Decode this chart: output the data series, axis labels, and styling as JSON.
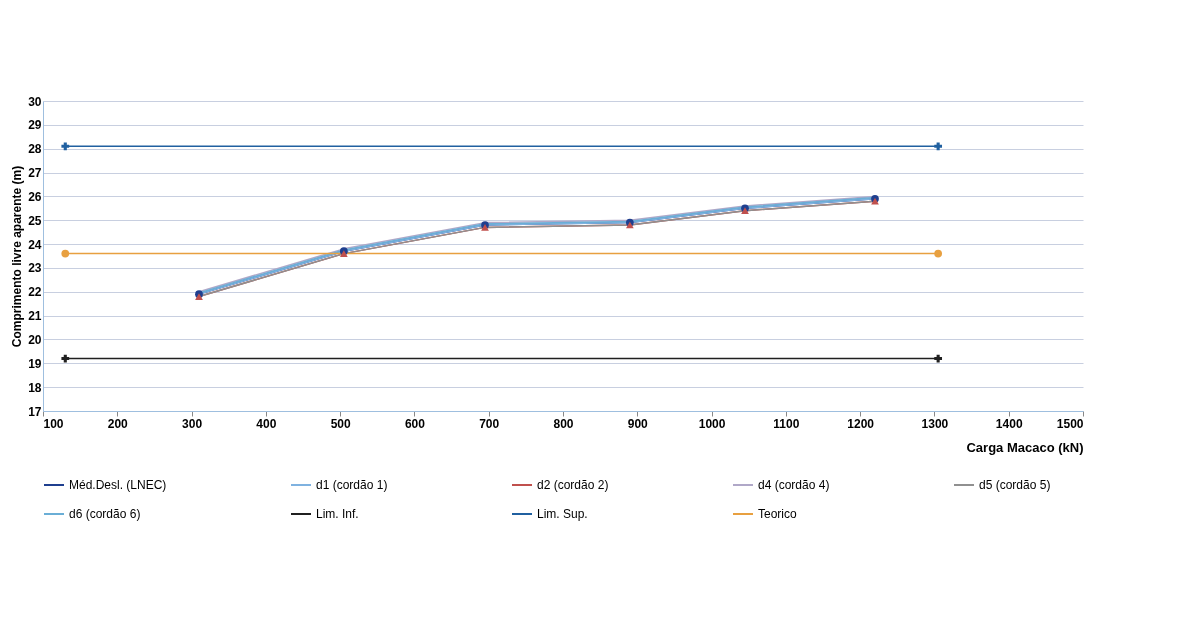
{
  "chart_data": {
    "type": "line",
    "xlabel": "Carga Macaco (kN)",
    "ylabel": "Comprimento livre aparente (m)",
    "xlim": [
      100,
      1500
    ],
    "xticks": [
      100,
      200,
      300,
      400,
      500,
      600,
      700,
      800,
      900,
      1000,
      1100,
      1200,
      1300,
      1400,
      1500
    ],
    "ylim": [
      17,
      30
    ],
    "yticks": [
      17,
      18,
      19,
      20,
      21,
      22,
      23,
      24,
      25,
      26,
      27,
      28,
      29,
      30
    ],
    "grid": "y",
    "legend": "bottom",
    "line_style": "solid",
    "series": [
      {
        "name": "Méd.Desl. (LNEC)",
        "color": "#1f3f8f",
        "marker": "circle",
        "x": [
          310,
          505,
          695,
          890,
          1045,
          1220
        ],
        "values": [
          21.9,
          23.7,
          24.8,
          24.9,
          25.5,
          25.9
        ]
      },
      {
        "name": "d1 (cordão 1)",
        "color": "#7fb2e0",
        "marker": "none",
        "x": [
          310,
          505,
          695,
          890,
          1045,
          1220
        ],
        "values": [
          21.9,
          23.7,
          24.8,
          24.9,
          25.5,
          25.9
        ]
      },
      {
        "name": "d2 (cordão 2)",
        "color": "#c0504d",
        "marker": "triangle",
        "x": [
          310,
          505,
          695,
          890,
          1045,
          1220
        ],
        "values": [
          21.8,
          23.6,
          24.7,
          24.8,
          25.4,
          25.8
        ]
      },
      {
        "name": "d4 (cordão 4)",
        "color": "#b0a8c8",
        "marker": "none",
        "x": [
          310,
          505,
          695,
          890,
          1045,
          1220
        ],
        "values": [
          22.0,
          23.8,
          24.9,
          25.0,
          25.6,
          26.0
        ]
      },
      {
        "name": "d5 (cordão 5)",
        "color": "#909090",
        "marker": "none",
        "x": [
          310,
          505,
          695,
          890,
          1045,
          1220
        ],
        "values": [
          21.8,
          23.6,
          24.7,
          24.8,
          25.4,
          25.8
        ]
      },
      {
        "name": "d6 (cordão 6)",
        "color": "#6aaed6",
        "marker": "none",
        "x": [
          310,
          505,
          695,
          890,
          1045,
          1220
        ],
        "values": [
          21.95,
          23.75,
          24.85,
          24.95,
          25.55,
          25.95
        ]
      },
      {
        "name": "Lim. Inf.",
        "color": "#202020",
        "marker": "cross",
        "x": [
          130,
          1305
        ],
        "values": [
          19.2,
          19.2
        ]
      },
      {
        "name": "Lim. Sup.",
        "color": "#2060a0",
        "marker": "cross",
        "x": [
          130,
          1305
        ],
        "values": [
          28.1,
          28.1
        ]
      },
      {
        "name": "Teorico",
        "color": "#e8a040",
        "marker": "circle",
        "x": [
          130,
          1305
        ],
        "values": [
          23.6,
          23.6
        ]
      }
    ]
  }
}
